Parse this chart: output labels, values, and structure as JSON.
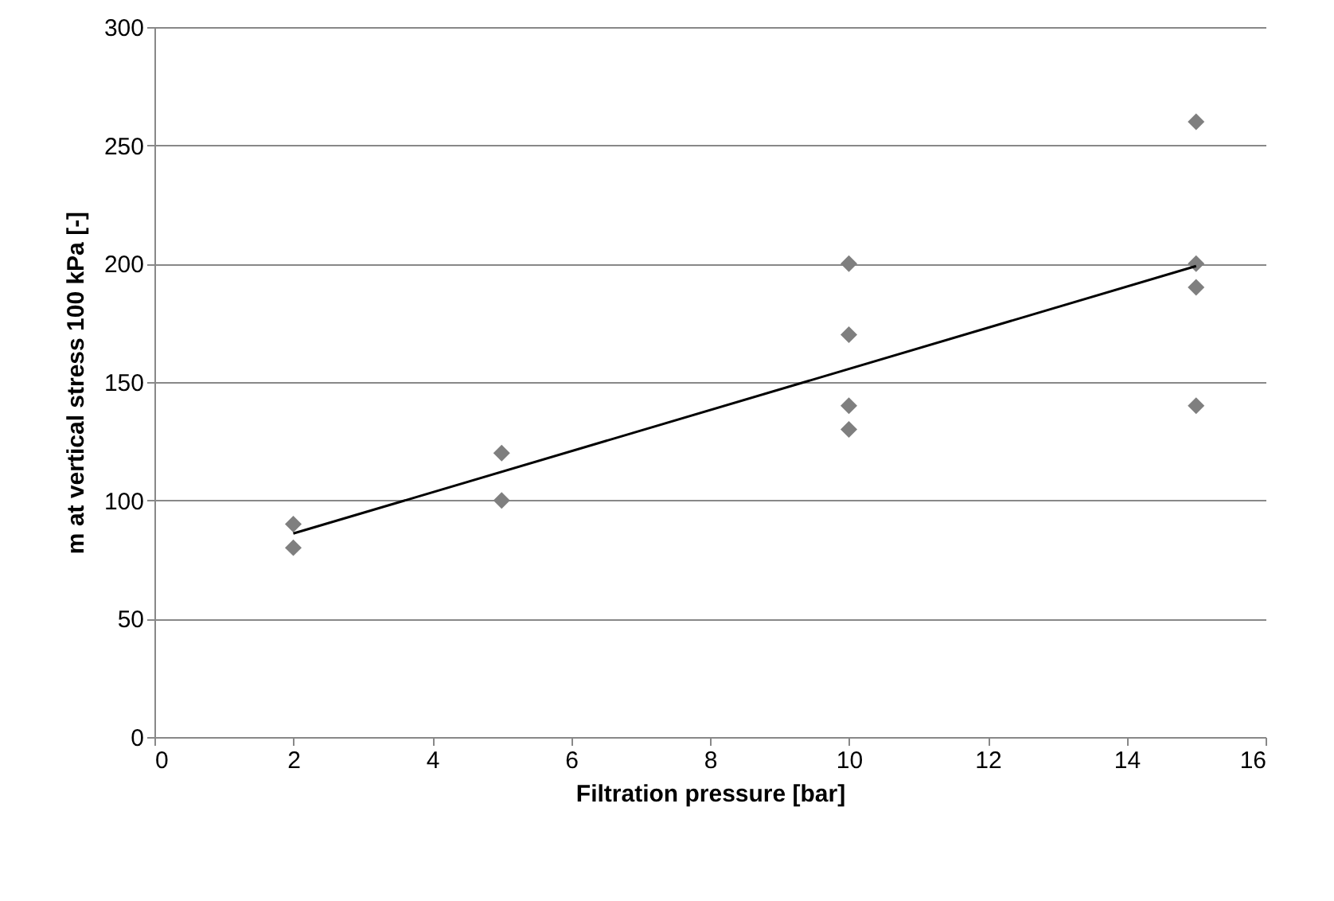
{
  "chart_data": {
    "type": "scatter",
    "xlabel": "Filtration pressure [bar]",
    "ylabel": "m at vertical stress 100 kPa [-]",
    "series": [
      {
        "color": "#7f7f7f",
        "marker": "diamond",
        "x": [
          2,
          2,
          5,
          5,
          10,
          10,
          10,
          10,
          15,
          15,
          15,
          15
        ],
        "values": [
          90,
          80,
          120,
          100,
          200,
          170,
          140,
          130,
          260,
          200,
          190,
          140
        ]
      },
      {
        "type": "line",
        "color": "#000000",
        "x": [
          2,
          15
        ],
        "values": [
          86,
          199
        ]
      }
    ],
    "xlim": [
      0,
      16
    ],
    "xticks": [
      0,
      2,
      4,
      6,
      8,
      10,
      12,
      14,
      16
    ],
    "ylim": [
      0,
      300
    ],
    "yticks": [
      0,
      50,
      100,
      150,
      200,
      250,
      300
    ],
    "grid": "y"
  }
}
